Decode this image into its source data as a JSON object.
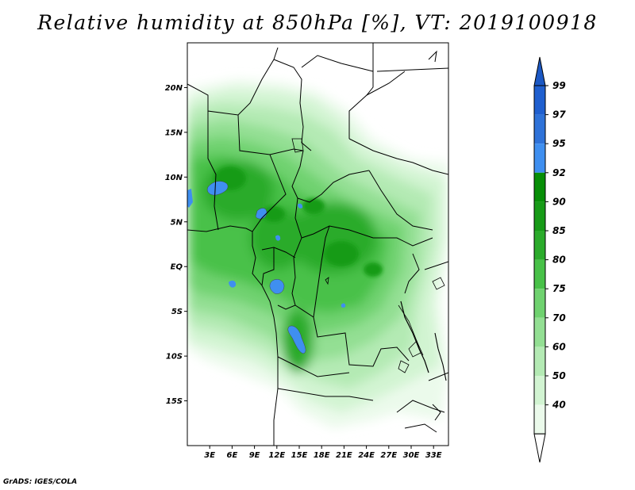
{
  "title": "Relative humidity at 850hPa [%], VT: 2019100918",
  "footer": "GrADS: IGES/COLA",
  "map": {
    "lon_range": [
      0,
      35
    ],
    "lat_range": [
      -20,
      25
    ],
    "lat_ticks": [
      "20N",
      "15N",
      "10N",
      "5N",
      "EQ",
      "5S",
      "10S",
      "15S"
    ],
    "lon_ticks": [
      "3E",
      "6E",
      "9E",
      "12E",
      "15E",
      "18E",
      "21E",
      "24E",
      "27E",
      "30E",
      "33E"
    ]
  },
  "colorbar": {
    "labels": [
      "99",
      "97",
      "95",
      "92",
      "90",
      "85",
      "80",
      "75",
      "70",
      "60",
      "50",
      "40"
    ],
    "colors": [
      "#1f5fcf",
      "#2e72d8",
      "#3f8ff0",
      "#078f07",
      "#179b17",
      "#2bab2b",
      "#48c148",
      "#6fd26f",
      "#93df93",
      "#b4eab4",
      "#d2f4d2",
      "#ebfaeb"
    ],
    "top_arrow_color": "#1b58c4",
    "bottom_arrow_color": "#ffffff"
  }
}
